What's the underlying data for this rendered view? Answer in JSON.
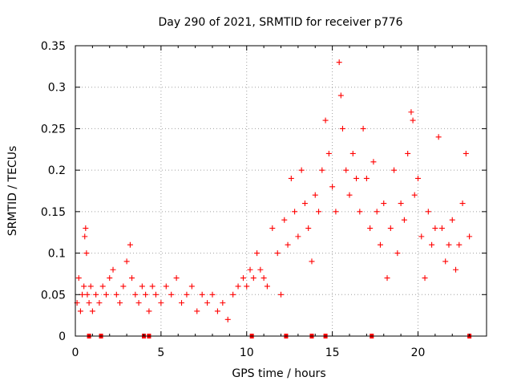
{
  "chart_data": {
    "type": "scatter",
    "title": "Day 290 of 2021, SRMTID for receiver p776",
    "xlabel": "GPS time / hours",
    "ylabel": "SRMTID / TECUs",
    "xlim": [
      0,
      24
    ],
    "ylim": [
      0,
      0.35
    ],
    "x_ticks": [
      0,
      5,
      10,
      15,
      20
    ],
    "y_ticks": [
      0,
      0.05,
      0.1,
      0.15,
      0.2,
      0.25,
      0.3,
      0.35
    ],
    "x_tick_labels": [
      "0",
      "5",
      "10",
      "15",
      "20"
    ],
    "y_tick_labels": [
      "0",
      "0.05",
      "0.1",
      "0.15",
      "0.2",
      "0.25",
      "0.3",
      "0.35"
    ],
    "grid": true,
    "series": [
      {
        "name": "SRMTID",
        "marker": "+",
        "color": "#ff0000",
        "x": [
          0.1,
          0.2,
          0.3,
          0.4,
          0.5,
          0.55,
          0.6,
          0.65,
          0.7,
          0.8,
          0.9,
          1.0,
          1.2,
          1.4,
          1.6,
          1.8,
          2.0,
          2.2,
          2.4,
          2.6,
          2.8,
          3.0,
          3.2,
          3.3,
          3.5,
          3.7,
          3.9,
          4.1,
          4.3,
          4.5,
          4.7,
          5.0,
          5.3,
          5.6,
          5.9,
          6.2,
          6.5,
          6.8,
          7.1,
          7.4,
          7.7,
          8.0,
          8.3,
          8.6,
          8.9,
          9.2,
          9.5,
          9.8,
          10.0,
          10.2,
          10.4,
          10.6,
          10.8,
          11.0,
          11.2,
          11.5,
          11.8,
          12.0,
          12.2,
          12.4,
          12.6,
          12.8,
          13.0,
          13.2,
          13.4,
          13.6,
          13.8,
          14.0,
          14.2,
          14.4,
          14.6,
          14.8,
          15.0,
          15.2,
          15.4,
          15.5,
          15.6,
          15.8,
          16.0,
          16.2,
          16.4,
          16.6,
          16.8,
          17.0,
          17.2,
          17.4,
          17.6,
          17.8,
          18.0,
          18.2,
          18.4,
          18.6,
          18.8,
          19.0,
          19.2,
          19.4,
          19.6,
          19.7,
          19.8,
          20.0,
          20.2,
          20.4,
          20.6,
          20.8,
          21.0,
          21.2,
          21.4,
          21.6,
          21.8,
          22.0,
          22.2,
          22.4,
          22.6,
          22.8,
          23.0
        ],
        "y": [
          0.04,
          0.07,
          0.03,
          0.05,
          0.06,
          0.12,
          0.13,
          0.1,
          0.05,
          0.04,
          0.06,
          0.03,
          0.05,
          0.04,
          0.06,
          0.05,
          0.07,
          0.08,
          0.05,
          0.04,
          0.06,
          0.09,
          0.11,
          0.07,
          0.05,
          0.04,
          0.06,
          0.05,
          0.03,
          0.06,
          0.05,
          0.04,
          0.06,
          0.05,
          0.07,
          0.04,
          0.05,
          0.06,
          0.03,
          0.05,
          0.04,
          0.05,
          0.03,
          0.04,
          0.02,
          0.05,
          0.06,
          0.07,
          0.06,
          0.08,
          0.07,
          0.1,
          0.08,
          0.07,
          0.06,
          0.13,
          0.1,
          0.05,
          0.14,
          0.11,
          0.19,
          0.15,
          0.12,
          0.2,
          0.16,
          0.13,
          0.09,
          0.17,
          0.15,
          0.2,
          0.26,
          0.22,
          0.18,
          0.15,
          0.33,
          0.29,
          0.25,
          0.2,
          0.17,
          0.22,
          0.19,
          0.15,
          0.25,
          0.19,
          0.13,
          0.21,
          0.15,
          0.11,
          0.16,
          0.07,
          0.13,
          0.2,
          0.1,
          0.16,
          0.14,
          0.22,
          0.27,
          0.26,
          0.17,
          0.19,
          0.12,
          0.07,
          0.15,
          0.11,
          0.13,
          0.24,
          0.13,
          0.09,
          0.11,
          0.14,
          0.08,
          0.11,
          0.16,
          0.22,
          0.12
        ]
      }
    ],
    "gap_markers_x": [
      0.8,
      1.5,
      4.0,
      4.3,
      10.3,
      12.3,
      13.8,
      14.6,
      17.3,
      23.0
    ]
  }
}
